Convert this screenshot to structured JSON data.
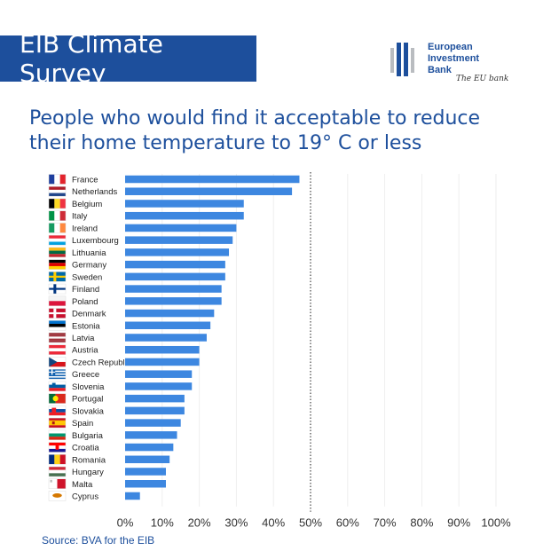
{
  "header": {
    "title": "EIB Climate Survey"
  },
  "logo": {
    "lines": [
      "European",
      "Investment",
      "Bank"
    ],
    "tagline": "The EU bank"
  },
  "subtitle_lines": [
    "People who would find it acceptable to reduce",
    "their home temperature to 19° C or less"
  ],
  "source": "Source: BVA for the EIB",
  "colors": {
    "brand_blue": "#1d4f9c",
    "bar": "#3d87e0",
    "reference_line": "#444444"
  },
  "chart_data": {
    "type": "bar",
    "orientation": "horizontal",
    "categories": [
      "France",
      "Netherlands",
      "Belgium",
      "Italy",
      "Ireland",
      "Luxembourg",
      "Lithuania",
      "Germany",
      "Sweden",
      "Finland",
      "Poland",
      "Denmark",
      "Estonia",
      "Latvia",
      "Austria",
      "Czech Republic",
      "Greece",
      "Slovenia",
      "Portugal",
      "Slovakia",
      "Spain",
      "Bulgaria",
      "Croatia",
      "Romania",
      "Hungary",
      "Malta",
      "Cyprus"
    ],
    "values": [
      47,
      45,
      32,
      32,
      30,
      29,
      28,
      27,
      27,
      26,
      26,
      24,
      23,
      22,
      20,
      20,
      18,
      18,
      16,
      16,
      15,
      14,
      13,
      12,
      11,
      11,
      4
    ],
    "xlim": [
      0,
      100
    ],
    "x_ticks": [
      0,
      10,
      20,
      30,
      40,
      50,
      60,
      70,
      80,
      90,
      100
    ],
    "x_tick_labels": [
      "0%",
      "10%",
      "20%",
      "30%",
      "40%",
      "50%",
      "60%",
      "70%",
      "80%",
      "90%",
      "100%"
    ],
    "reference_line": {
      "value": 50,
      "style": "dotted"
    },
    "vertical_grid": true,
    "flag_icons": [
      "flag-france",
      "flag-netherlands",
      "flag-belgium",
      "flag-italy",
      "flag-ireland",
      "flag-luxembourg",
      "flag-lithuania",
      "flag-germany",
      "flag-sweden",
      "flag-finland",
      "flag-poland",
      "flag-denmark",
      "flag-estonia",
      "flag-latvia",
      "flag-austria",
      "flag-czech-republic",
      "flag-greece",
      "flag-slovenia",
      "flag-portugal",
      "flag-slovakia",
      "flag-spain",
      "flag-bulgaria",
      "flag-croatia",
      "flag-romania",
      "flag-hungary",
      "flag-malta",
      "flag-cyprus"
    ]
  }
}
